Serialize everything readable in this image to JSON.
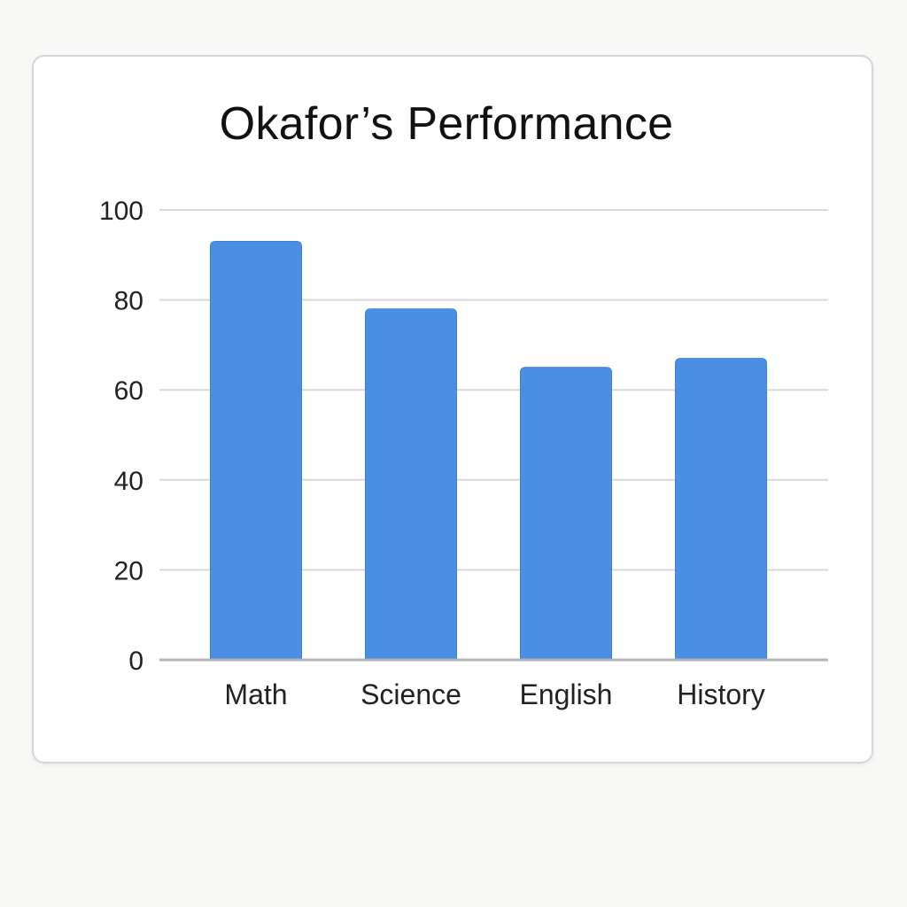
{
  "chart_data": {
    "type": "bar",
    "title": "Okafor’s Performance",
    "categories": [
      "Math",
      "Science",
      "English",
      "History"
    ],
    "values": [
      93,
      78,
      65,
      67
    ],
    "ylim": [
      0,
      100
    ],
    "yticks": [
      "0",
      "20",
      "40",
      "60",
      "80",
      "100"
    ],
    "ytick_values": [
      0,
      20,
      40,
      60,
      80,
      100
    ],
    "grid": true,
    "legend": "none",
    "xlabel": "",
    "ylabel": "",
    "bar_color": "#4a8fe3",
    "grid_color": "#d9d9d9"
  }
}
